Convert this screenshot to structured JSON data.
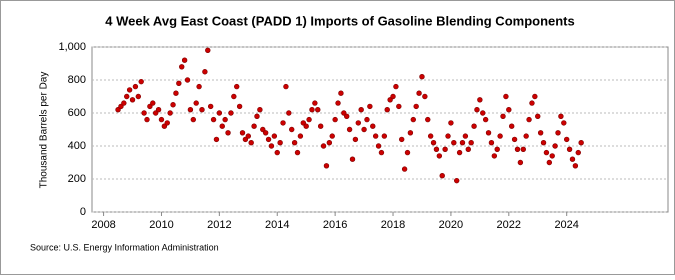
{
  "chart_data": {
    "type": "scatter",
    "title": "4 Week Avg East Coast (PADD 1) Imports of Gasoline Blending Components",
    "ylabel": "Thousand Barrels per Day",
    "source": "Source: U.S. Energy Information Administration",
    "color": "#cc0000",
    "grid": true,
    "xlim": [
      2007.6,
      2027.5
    ],
    "xticks": [
      2008,
      2010,
      2012,
      2014,
      2016,
      2018,
      2020,
      2022,
      2024
    ],
    "ylim": [
      0,
      1000
    ],
    "yticks": [
      0,
      200,
      400,
      600,
      800,
      {
        "value": 1000,
        "label": "1,000"
      }
    ],
    "x": [
      2008.5,
      2008.6,
      2008.7,
      2008.8,
      2008.9,
      2009.0,
      2009.1,
      2009.2,
      2009.3,
      2009.4,
      2009.5,
      2009.6,
      2009.7,
      2009.8,
      2009.9,
      2010.0,
      2010.1,
      2010.2,
      2010.3,
      2010.4,
      2010.5,
      2010.6,
      2010.7,
      2010.8,
      2010.9,
      2011.0,
      2011.1,
      2011.2,
      2011.3,
      2011.4,
      2011.5,
      2011.6,
      2011.7,
      2011.8,
      2011.9,
      2012.0,
      2012.1,
      2012.2,
      2012.3,
      2012.4,
      2012.5,
      2012.6,
      2012.7,
      2012.8,
      2012.9,
      2013.0,
      2013.1,
      2013.2,
      2013.3,
      2013.4,
      2013.5,
      2013.6,
      2013.7,
      2013.8,
      2013.9,
      2014.0,
      2014.1,
      2014.2,
      2014.3,
      2014.4,
      2014.5,
      2014.6,
      2014.7,
      2014.8,
      2014.9,
      2015.0,
      2015.1,
      2015.2,
      2015.3,
      2015.4,
      2015.5,
      2015.6,
      2015.7,
      2015.8,
      2015.9,
      2016.0,
      2016.1,
      2016.2,
      2016.3,
      2016.4,
      2016.5,
      2016.6,
      2016.7,
      2016.8,
      2016.9,
      2017.0,
      2017.1,
      2017.2,
      2017.3,
      2017.4,
      2017.5,
      2017.6,
      2017.7,
      2017.8,
      2017.9,
      2018.0,
      2018.1,
      2018.2,
      2018.3,
      2018.4,
      2018.5,
      2018.6,
      2018.7,
      2018.8,
      2018.9,
      2019.0,
      2019.1,
      2019.2,
      2019.3,
      2019.4,
      2019.5,
      2019.6,
      2019.7,
      2019.8,
      2019.9,
      2020.0,
      2020.1,
      2020.2,
      2020.3,
      2020.4,
      2020.5,
      2020.6,
      2020.7,
      2020.8,
      2020.9,
      2021.0,
      2021.1,
      2021.2,
      2021.3,
      2021.4,
      2021.5,
      2021.6,
      2021.7,
      2021.8,
      2021.9,
      2022.0,
      2022.1,
      2022.2,
      2022.3,
      2022.4,
      2022.5,
      2022.6,
      2022.7,
      2022.8,
      2022.9,
      2023.0,
      2023.1,
      2023.2,
      2023.3,
      2023.4,
      2023.5,
      2023.6,
      2023.7,
      2023.8,
      2023.9,
      2024.0,
      2024.1,
      2024.2,
      2024.3,
      2024.4,
      2024.5
    ],
    "values": [
      620,
      640,
      660,
      700,
      740,
      680,
      760,
      700,
      790,
      600,
      560,
      640,
      660,
      600,
      620,
      560,
      520,
      540,
      600,
      650,
      720,
      780,
      880,
      920,
      800,
      620,
      560,
      660,
      760,
      620,
      850,
      980,
      640,
      560,
      440,
      600,
      520,
      560,
      480,
      600,
      700,
      760,
      640,
      480,
      440,
      460,
      420,
      520,
      580,
      620,
      500,
      480,
      440,
      400,
      460,
      360,
      420,
      540,
      760,
      600,
      500,
      420,
      360,
      460,
      540,
      520,
      560,
      620,
      660,
      620,
      520,
      400,
      280,
      420,
      460,
      560,
      660,
      720,
      600,
      580,
      500,
      320,
      440,
      540,
      620,
      500,
      560,
      640,
      520,
      460,
      400,
      360,
      460,
      620,
      680,
      700,
      760,
      640,
      440,
      260,
      360,
      480,
      560,
      640,
      720,
      820,
      700,
      560,
      460,
      420,
      380,
      340,
      220,
      380,
      460,
      540,
      420,
      190,
      360,
      420,
      460,
      380,
      420,
      520,
      620,
      680,
      600,
      560,
      480,
      420,
      340,
      380,
      460,
      580,
      700,
      620,
      520,
      440,
      380,
      300,
      380,
      460,
      560,
      660,
      700,
      580,
      480,
      420,
      360,
      300,
      340,
      400,
      480,
      580,
      540,
      440,
      380,
      320,
      280,
      360,
      420
    ]
  }
}
